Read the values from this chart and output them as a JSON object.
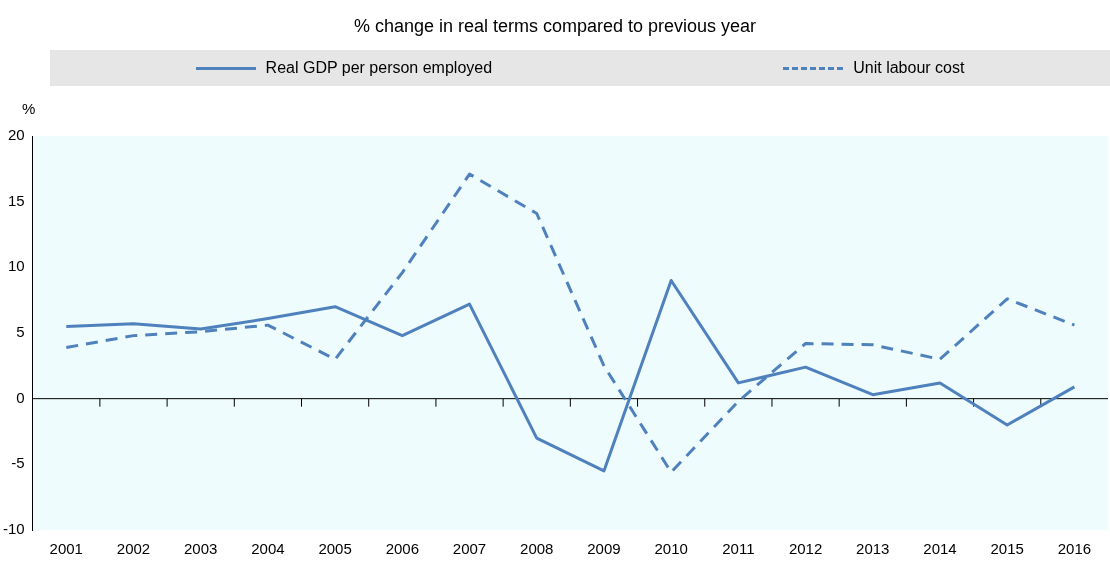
{
  "chart_data": {
    "type": "line",
    "title": "% change in real terms compared to previous year",
    "ylabel": "%",
    "categories": [
      "2001",
      "2002",
      "2003",
      "2004",
      "2005",
      "2006",
      "2007",
      "2008",
      "2009",
      "2010",
      "2011",
      "2012",
      "2013",
      "2014",
      "2015",
      "2016"
    ],
    "series": [
      {
        "name": "Real GDP per person employed",
        "color": "#4f81bd",
        "line_style": "solid",
        "values": [
          5.5,
          5.7,
          5.3,
          6.1,
          7.0,
          4.8,
          7.2,
          -3.0,
          -5.5,
          9.0,
          1.2,
          2.4,
          0.3,
          1.2,
          -2.0,
          0.9
        ]
      },
      {
        "name": "Unit labour cost",
        "color": "#4f81bd",
        "line_style": "dashed",
        "values": [
          3.9,
          4.8,
          5.1,
          5.6,
          3.0,
          9.6,
          17.1,
          14.1,
          2.5,
          -5.6,
          -0.2,
          4.2,
          4.1,
          3.0,
          7.6,
          5.6
        ]
      }
    ],
    "ylim": [
      -10,
      20
    ],
    "yticks": [
      -10,
      -5,
      0,
      5,
      10,
      15,
      20
    ],
    "legend": "top",
    "marker": "none"
  }
}
